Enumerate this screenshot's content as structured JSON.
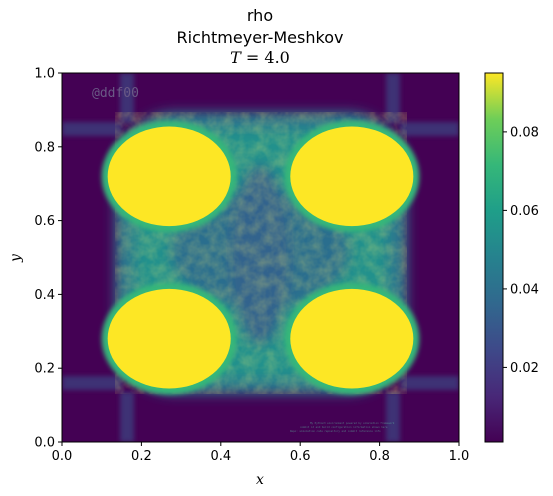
{
  "chart_data": {
    "type": "heatmap",
    "title_lines": [
      "rho",
      "Richtmeyer-Meshkov",
      "T = 4.0"
    ],
    "title_var": "T",
    "title_value": "4.0",
    "xlabel": "x",
    "ylabel": "y",
    "xlim": [
      0.0,
      1.0
    ],
    "ylim": [
      0.0,
      1.0
    ],
    "xticks": [
      "0.0",
      "0.2",
      "0.4",
      "0.6",
      "0.8",
      "1.0"
    ],
    "yticks": [
      "0.0",
      "0.2",
      "0.4",
      "0.6",
      "0.8",
      "1.0"
    ],
    "colormap": "viridis",
    "colorbar": {
      "range": [
        0.001,
        0.095
      ],
      "ticks": [
        0.02,
        0.04,
        0.06,
        0.08
      ],
      "tick_labels": [
        "0.02",
        "0.04",
        "0.06",
        "0.08"
      ]
    },
    "watermark": "@ddf00",
    "dense_blobs": [
      {
        "x": 0.27,
        "y": 0.72,
        "value": 0.095
      },
      {
        "x": 0.73,
        "y": 0.72,
        "value": 0.095
      },
      {
        "x": 0.27,
        "y": 0.28,
        "value": 0.095
      },
      {
        "x": 0.73,
        "y": 0.28,
        "value": 0.095
      }
    ],
    "colors": {
      "low": "#440154",
      "mid": "#21918c",
      "high": "#fde725"
    },
    "grid": false
  }
}
